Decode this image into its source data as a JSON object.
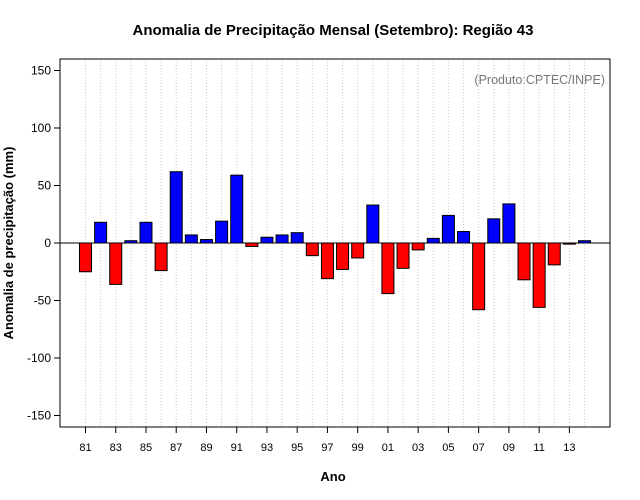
{
  "chart_data": {
    "type": "bar",
    "title": "Anomalia de Precipitação Mensal (Setembro): Região 43",
    "xlabel": "Ano",
    "ylabel": "Anomalia de precipitação (mm)",
    "annotation": "(Produto:CPTEC/INPE)",
    "ylim": [
      -160,
      160
    ],
    "yticks": [
      -150,
      -100,
      -50,
      0,
      50,
      100,
      150
    ],
    "xtick_labels": [
      "81",
      "83",
      "85",
      "87",
      "89",
      "91",
      "93",
      "95",
      "97",
      "99",
      "01",
      "03",
      "05",
      "07",
      "09",
      "11",
      "13"
    ],
    "categories": [
      "1981",
      "1982",
      "1983",
      "1984",
      "1985",
      "1986",
      "1987",
      "1988",
      "1989",
      "1990",
      "1991",
      "1992",
      "1993",
      "1994",
      "1995",
      "1996",
      "1997",
      "1998",
      "1999",
      "2000",
      "2001",
      "2002",
      "2003",
      "2004",
      "2005",
      "2006",
      "2007",
      "2008",
      "2009",
      "2010",
      "2011",
      "2012",
      "2013",
      "2014"
    ],
    "values": [
      -25,
      18,
      -36,
      2,
      18,
      -24,
      62,
      7,
      3,
      19,
      59,
      -3,
      5,
      7,
      9,
      -11,
      -31,
      -23,
      -13,
      33,
      -44,
      -22,
      -6,
      4,
      24,
      10,
      -58,
      21,
      34,
      -32,
      -56,
      -19,
      -1,
      2
    ],
    "grid": true,
    "colors": {
      "positive": "#0000ff",
      "negative": "#ff0000",
      "grid": "#c8c8c8",
      "credit": "#777777"
    }
  }
}
